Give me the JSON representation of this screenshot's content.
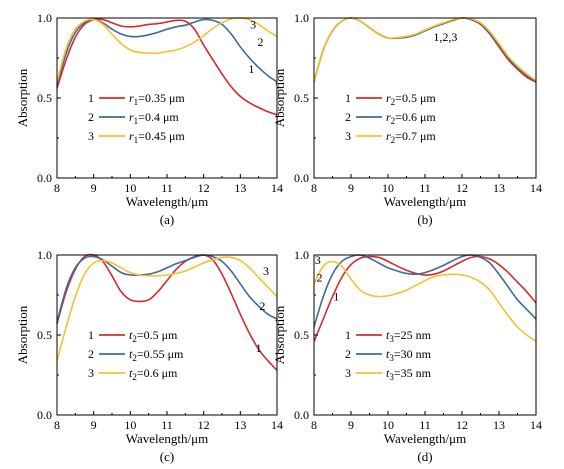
{
  "colors": {
    "s1": "#d62b2b",
    "s2": "#3f6b97",
    "s3": "#f2c230"
  },
  "chart_data": [
    {
      "type": "line",
      "panel_label": "(a)",
      "xlabel": "Wavelength/μm",
      "ylabel": "Absorption",
      "xlim": [
        8,
        14
      ],
      "ylim": [
        0,
        1.0
      ],
      "xticks": [
        "8",
        "9",
        "10",
        "11",
        "12",
        "13",
        "14"
      ],
      "yticks": [
        "0.0",
        "0.5",
        "1.0"
      ],
      "legend": {
        "position": "center-left",
        "entries": [
          {
            "num": "1",
            "var": "r",
            "sub": "1",
            "val": "=0.35 μm"
          },
          {
            "num": "2",
            "var": "r",
            "sub": "1",
            "val": "=0.4 μm"
          },
          {
            "num": "3",
            "var": "r",
            "sub": "1",
            "val": "=0.45 μm"
          }
        ]
      },
      "annotations": [
        {
          "text": "1",
          "x": 13.3,
          "y": 0.68
        },
        {
          "text": "2",
          "x": 13.55,
          "y": 0.85
        },
        {
          "text": "3",
          "x": 13.35,
          "y": 0.96
        }
      ],
      "series": [
        {
          "x": [
            8,
            8.25,
            8.5,
            8.75,
            9,
            9.25,
            9.5,
            9.75,
            10,
            10.25,
            10.5,
            10.75,
            11,
            11.25,
            11.5,
            11.75,
            12,
            12.25,
            12.5,
            12.75,
            13,
            13.25,
            13.5,
            13.75,
            14
          ],
          "y": [
            0.56,
            0.74,
            0.88,
            0.96,
            0.99,
            0.99,
            0.97,
            0.95,
            0.945,
            0.95,
            0.96,
            0.965,
            0.975,
            0.985,
            0.98,
            0.93,
            0.83,
            0.74,
            0.65,
            0.57,
            0.51,
            0.47,
            0.44,
            0.415,
            0.395
          ]
        },
        {
          "x": [
            8,
            8.25,
            8.5,
            8.75,
            9,
            9.25,
            9.5,
            9.75,
            10,
            10.25,
            10.5,
            10.75,
            11,
            11.25,
            11.5,
            11.75,
            12,
            12.25,
            12.5,
            12.75,
            13,
            13.25,
            13.5,
            13.75,
            14
          ],
          "y": [
            0.58,
            0.78,
            0.91,
            0.97,
            0.99,
            0.97,
            0.93,
            0.9,
            0.885,
            0.885,
            0.895,
            0.91,
            0.93,
            0.945,
            0.955,
            0.975,
            0.99,
            0.985,
            0.96,
            0.9,
            0.82,
            0.75,
            0.69,
            0.64,
            0.6
          ]
        },
        {
          "x": [
            8,
            8.25,
            8.5,
            8.75,
            9,
            9.25,
            9.5,
            9.75,
            10,
            10.25,
            10.5,
            10.75,
            11,
            11.25,
            11.5,
            11.75,
            12,
            12.25,
            12.5,
            12.75,
            13,
            13.25,
            13.5,
            13.75,
            14
          ],
          "y": [
            0.6,
            0.81,
            0.93,
            0.98,
            0.99,
            0.96,
            0.9,
            0.84,
            0.8,
            0.785,
            0.78,
            0.78,
            0.79,
            0.8,
            0.82,
            0.85,
            0.89,
            0.935,
            0.97,
            0.995,
            1.0,
            0.99,
            0.96,
            0.92,
            0.885
          ]
        }
      ]
    },
    {
      "type": "line",
      "panel_label": "(b)",
      "xlabel": "Wavelength/μm",
      "ylabel": "Absorption",
      "xlim": [
        8,
        14
      ],
      "ylim": [
        0,
        1.0
      ],
      "xticks": [
        "8",
        "9",
        "10",
        "11",
        "12",
        "13",
        "14"
      ],
      "yticks": [
        "0.0",
        "0.5",
        "1.0"
      ],
      "legend": {
        "position": "center-left",
        "entries": [
          {
            "num": "1",
            "var": "r",
            "sub": "2",
            "val": "=0.5 μm"
          },
          {
            "num": "2",
            "var": "r",
            "sub": "2",
            "val": "=0.6 μm"
          },
          {
            "num": "3",
            "var": "r",
            "sub": "2",
            "val": "=0.7 μm"
          }
        ]
      },
      "annotations": [
        {
          "text": "1,2,3",
          "x": 11.55,
          "y": 0.88
        }
      ],
      "series": [
        {
          "x": [
            8,
            8.25,
            8.5,
            8.75,
            9,
            9.25,
            9.5,
            9.75,
            10,
            10.25,
            10.5,
            10.75,
            11,
            11.25,
            11.5,
            11.75,
            12,
            12.25,
            12.5,
            12.75,
            13,
            13.25,
            13.5,
            13.75,
            14
          ],
          "y": [
            0.6,
            0.8,
            0.92,
            0.98,
            1.0,
            0.98,
            0.94,
            0.9,
            0.875,
            0.875,
            0.88,
            0.895,
            0.92,
            0.945,
            0.965,
            0.985,
            1.0,
            0.99,
            0.96,
            0.9,
            0.82,
            0.74,
            0.68,
            0.63,
            0.6
          ]
        },
        {
          "x": [
            8,
            8.25,
            8.5,
            8.75,
            9,
            9.25,
            9.5,
            9.75,
            10,
            10.25,
            10.5,
            10.75,
            11,
            11.25,
            11.5,
            11.75,
            12,
            12.25,
            12.5,
            12.75,
            13,
            13.25,
            13.5,
            13.75,
            14
          ],
          "y": [
            0.6,
            0.8,
            0.92,
            0.98,
            1.0,
            0.98,
            0.94,
            0.9,
            0.875,
            0.875,
            0.88,
            0.895,
            0.92,
            0.945,
            0.965,
            0.985,
            1.0,
            0.99,
            0.965,
            0.905,
            0.83,
            0.75,
            0.69,
            0.64,
            0.605
          ]
        },
        {
          "x": [
            8,
            8.25,
            8.5,
            8.75,
            9,
            9.25,
            9.5,
            9.75,
            10,
            10.25,
            10.5,
            10.75,
            11,
            11.25,
            11.5,
            11.75,
            12,
            12.25,
            12.5,
            12.75,
            13,
            13.25,
            13.5,
            13.75,
            14
          ],
          "y": [
            0.6,
            0.8,
            0.92,
            0.98,
            1.0,
            0.98,
            0.94,
            0.9,
            0.875,
            0.878,
            0.885,
            0.9,
            0.925,
            0.95,
            0.97,
            0.99,
            1.0,
            0.995,
            0.97,
            0.915,
            0.84,
            0.76,
            0.7,
            0.65,
            0.61
          ]
        }
      ]
    },
    {
      "type": "line",
      "panel_label": "(c)",
      "xlabel": "Wavelength/μm",
      "ylabel": "Absorption",
      "xlim": [
        8,
        14
      ],
      "ylim": [
        0,
        1.0
      ],
      "xticks": [
        "8",
        "9",
        "10",
        "11",
        "12",
        "13",
        "14"
      ],
      "yticks": [
        "0.0",
        "0.5",
        "1.0"
      ],
      "legend": {
        "position": "center-left",
        "entries": [
          {
            "num": "1",
            "var": "t",
            "sub": "2",
            "val": "=0.5 μm"
          },
          {
            "num": "2",
            "var": "t",
            "sub": "2",
            "val": "=0.55 μm"
          },
          {
            "num": "3",
            "var": "t",
            "sub": "2",
            "val": "=0.6 μm"
          }
        ]
      },
      "annotations": [
        {
          "text": "1",
          "x": 13.5,
          "y": 0.42
        },
        {
          "text": "2",
          "x": 13.6,
          "y": 0.68
        },
        {
          "text": "3",
          "x": 13.7,
          "y": 0.9
        }
      ],
      "series": [
        {
          "x": [
            8,
            8.25,
            8.5,
            8.75,
            9,
            9.25,
            9.5,
            9.75,
            10,
            10.25,
            10.5,
            10.75,
            11,
            11.25,
            11.5,
            11.75,
            12,
            12.25,
            12.5,
            12.75,
            13,
            13.25,
            13.5,
            13.75,
            14
          ],
          "y": [
            0.57,
            0.77,
            0.91,
            0.99,
            1.0,
            0.96,
            0.87,
            0.77,
            0.72,
            0.71,
            0.72,
            0.77,
            0.84,
            0.91,
            0.96,
            0.99,
            1.0,
            0.97,
            0.88,
            0.76,
            0.63,
            0.51,
            0.41,
            0.34,
            0.28
          ]
        },
        {
          "x": [
            8,
            8.25,
            8.5,
            8.75,
            9,
            9.25,
            9.5,
            9.75,
            10,
            10.25,
            10.5,
            10.75,
            11,
            11.25,
            11.5,
            11.75,
            12,
            12.25,
            12.5,
            12.75,
            13,
            13.25,
            13.5,
            13.75,
            14
          ],
          "y": [
            0.58,
            0.79,
            0.92,
            0.98,
            0.99,
            0.97,
            0.93,
            0.89,
            0.875,
            0.875,
            0.88,
            0.895,
            0.92,
            0.945,
            0.965,
            0.985,
            1.0,
            0.99,
            0.96,
            0.9,
            0.82,
            0.74,
            0.68,
            0.63,
            0.6
          ]
        },
        {
          "x": [
            8,
            8.25,
            8.5,
            8.75,
            9,
            9.25,
            9.5,
            9.75,
            10,
            10.25,
            10.5,
            10.75,
            11,
            11.25,
            11.5,
            11.75,
            12,
            12.25,
            12.5,
            12.75,
            13,
            13.25,
            13.5,
            13.75,
            14
          ],
          "y": [
            0.34,
            0.55,
            0.74,
            0.88,
            0.95,
            0.965,
            0.95,
            0.92,
            0.89,
            0.875,
            0.87,
            0.87,
            0.875,
            0.885,
            0.9,
            0.925,
            0.95,
            0.97,
            0.985,
            0.985,
            0.965,
            0.92,
            0.86,
            0.8,
            0.74
          ]
        }
      ]
    },
    {
      "type": "line",
      "panel_label": "(d)",
      "xlabel": "Wavelength/μm",
      "ylabel": "Absorption",
      "xlim": [
        8,
        14
      ],
      "ylim": [
        0,
        1.0
      ],
      "xticks": [
        "8",
        "9",
        "10",
        "11",
        "12",
        "13",
        "14"
      ],
      "yticks": [
        "0.0",
        "0.5",
        "1.0"
      ],
      "legend": {
        "position": "center-left",
        "entries": [
          {
            "num": "1",
            "var": "t",
            "sub": "3",
            "val": "=25 nm"
          },
          {
            "num": "2",
            "var": "t",
            "sub": "3",
            "val": "=30 nm"
          },
          {
            "num": "3",
            "var": "t",
            "sub": "3",
            "val": "=35 nm"
          }
        ]
      },
      "annotations": [
        {
          "text": "1",
          "x": 8.6,
          "y": 0.74
        },
        {
          "text": "2",
          "x": 8.15,
          "y": 0.86
        },
        {
          "text": "3",
          "x": 8.1,
          "y": 0.97
        }
      ],
      "series": [
        {
          "x": [
            8,
            8.25,
            8.5,
            8.75,
            9,
            9.25,
            9.5,
            9.75,
            10,
            10.25,
            10.5,
            10.75,
            11,
            11.25,
            11.5,
            11.75,
            12,
            12.25,
            12.5,
            12.75,
            13,
            13.25,
            13.5,
            13.75,
            14
          ],
          "y": [
            0.46,
            0.6,
            0.74,
            0.86,
            0.94,
            0.98,
            0.99,
            0.985,
            0.96,
            0.93,
            0.905,
            0.885,
            0.875,
            0.88,
            0.9,
            0.93,
            0.96,
            0.985,
            0.99,
            0.975,
            0.94,
            0.89,
            0.83,
            0.77,
            0.7
          ]
        },
        {
          "x": [
            8,
            8.25,
            8.5,
            8.75,
            9,
            9.25,
            9.5,
            9.75,
            10,
            10.25,
            10.5,
            10.75,
            11,
            11.25,
            11.5,
            11.75,
            12,
            12.25,
            12.5,
            12.75,
            13,
            13.25,
            13.5,
            13.75,
            14
          ],
          "y": [
            0.55,
            0.74,
            0.88,
            0.96,
            0.99,
            1.0,
            0.98,
            0.95,
            0.92,
            0.9,
            0.885,
            0.88,
            0.89,
            0.91,
            0.935,
            0.965,
            0.99,
            1.0,
            0.985,
            0.95,
            0.88,
            0.8,
            0.72,
            0.66,
            0.6
          ]
        },
        {
          "x": [
            8,
            8.25,
            8.5,
            8.75,
            9,
            9.25,
            9.5,
            9.75,
            10,
            10.25,
            10.5,
            10.75,
            11,
            11.25,
            11.5,
            11.75,
            12,
            12.25,
            12.5,
            12.75,
            13,
            13.25,
            13.5,
            13.75,
            14
          ],
          "y": [
            0.82,
            0.93,
            0.96,
            0.93,
            0.85,
            0.78,
            0.75,
            0.74,
            0.745,
            0.76,
            0.78,
            0.81,
            0.84,
            0.865,
            0.875,
            0.88,
            0.875,
            0.86,
            0.83,
            0.78,
            0.7,
            0.62,
            0.55,
            0.5,
            0.46
          ]
        }
      ]
    }
  ]
}
